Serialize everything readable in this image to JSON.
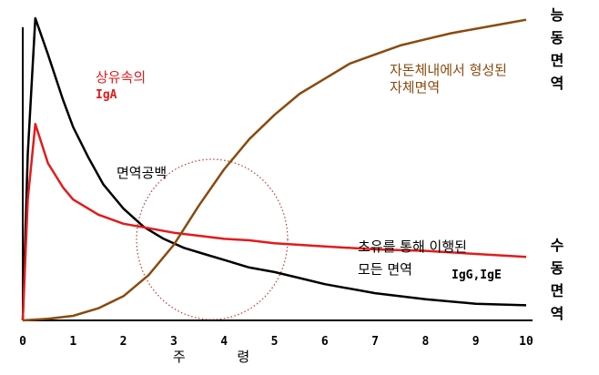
{
  "chart_data": {
    "type": "line",
    "xlabel": "주 령",
    "x_ticks": [
      "0",
      "1",
      "2",
      "3",
      "4",
      "5",
      "6",
      "7",
      "8",
      "9",
      "10"
    ],
    "xlim": [
      0,
      10
    ],
    "ylim": [
      0,
      100
    ],
    "grid": false,
    "series": [
      {
        "color": "#000000",
        "x": [
          0,
          0.1,
          0.25,
          0.5,
          0.8,
          1.0,
          1.3,
          1.6,
          2.0,
          2.4,
          2.8,
          3.2,
          3.6,
          4.0,
          4.5,
          5.0,
          5.5,
          6.0,
          7.0,
          8.0,
          9.0,
          10.0
        ],
        "y": [
          0,
          55,
          100,
          88,
          73,
          64,
          54,
          45,
          37,
          31,
          27,
          24,
          22,
          20,
          17.5,
          16,
          14,
          12,
          9,
          7,
          5.5,
          5
        ]
      },
      {
        "color": "#e31b1b",
        "x": [
          0,
          0.1,
          0.25,
          0.5,
          0.8,
          1.0,
          1.5,
          2.0,
          2.5,
          3.0,
          3.5,
          4.0,
          4.5,
          5.0,
          6.0,
          7.0,
          8.0,
          9.0,
          10.0
        ],
        "y": [
          0,
          40,
          65,
          52,
          44,
          40,
          35,
          32,
          30.5,
          29,
          28,
          27,
          26.5,
          25.5,
          24.5,
          23.5,
          23,
          22,
          21
        ]
      },
      {
        "color": "#8a4a0e",
        "x": [
          0,
          0.5,
          1.0,
          1.5,
          2.0,
          2.5,
          3.0,
          3.5,
          4.0,
          4.5,
          5.0,
          5.5,
          6.0,
          6.5,
          7.0,
          7.5,
          8.0,
          8.5,
          9.0,
          9.5,
          10.0
        ],
        "y": [
          0,
          0.5,
          1.5,
          4,
          8,
          15,
          25,
          38,
          50,
          60,
          68,
          75,
          80,
          85,
          88,
          91,
          93,
          95,
          96.5,
          98,
          99.5
        ]
      }
    ],
    "annotations": {
      "iga_line1": "상유속의",
      "iga_line2": "IgA",
      "gap": "면역공백",
      "self_line1": "자돈체내에서 형성된",
      "self_line2": "자체면역",
      "colostrum_line1": "초유를 통해 이행된",
      "colostrum_line2": "모든 면역",
      "igg_ige": "IgG,IgE",
      "active_label": "능동면역",
      "passive_label": "수동면역"
    }
  }
}
